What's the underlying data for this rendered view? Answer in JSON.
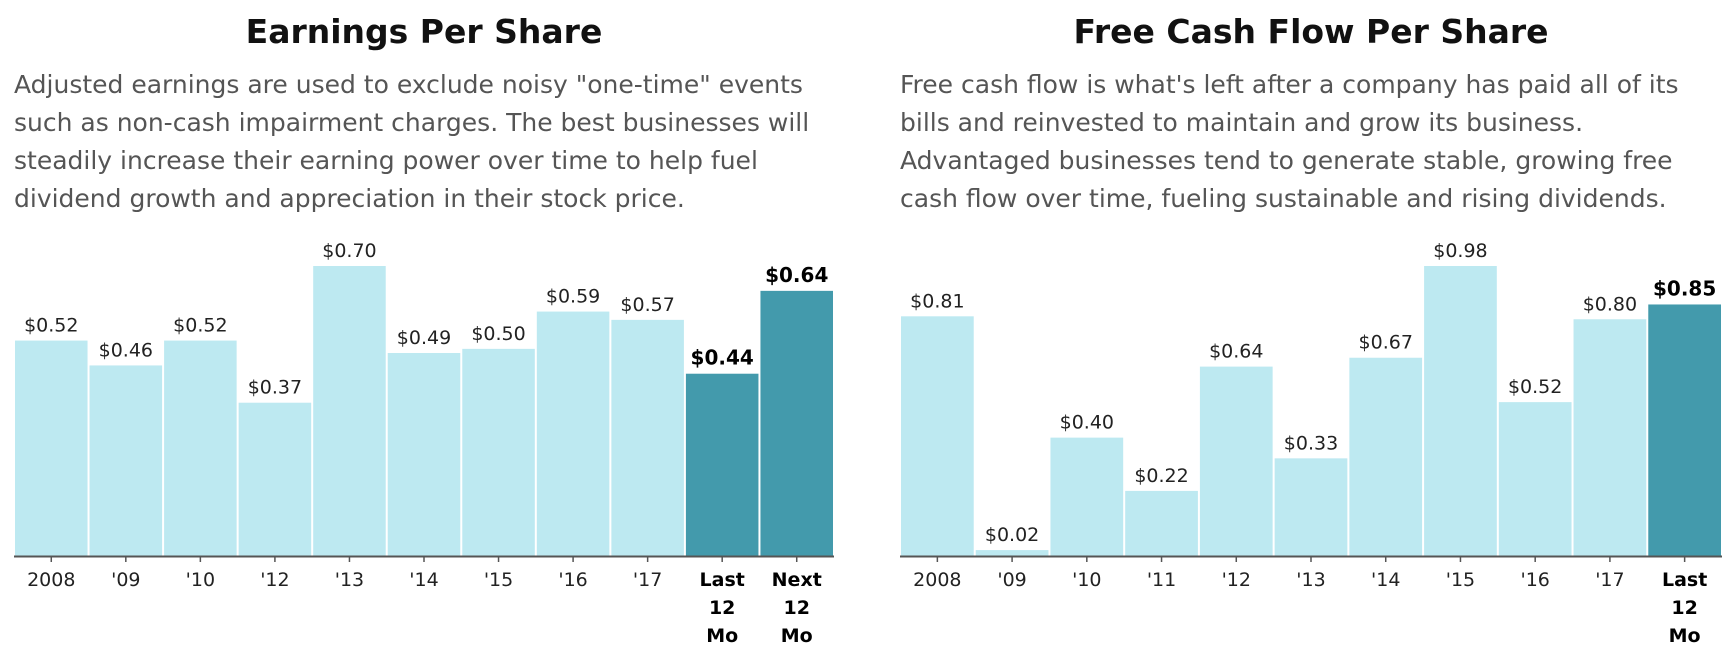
{
  "charts": [
    {
      "id": "eps",
      "title": "Earnings Per Share",
      "description": "Adjusted earnings are used to exclude noisy \"one-time\" events such as non-cash impairment charges. The best businesses will steadily increase their earning power over time to help fuel dividend growth and appreciation in their stock price."
    },
    {
      "id": "fcf",
      "title": "Free Cash Flow Per Share",
      "description": "Free cash flow is what's left after a company has paid all of its bills and reinvested to maintain and grow its business. Advantaged businesses tend to generate stable, growing free cash flow over time, fueling sustainable and rising dividends."
    }
  ],
  "colors": {
    "bar": "#bde9f1",
    "highlight": "#439aac",
    "axis": "#555555"
  },
  "chart_data": [
    {
      "type": "bar",
      "title": "Earnings Per Share",
      "categories": [
        "2008",
        "'09",
        "'10",
        "'12",
        "'13",
        "'14",
        "'15",
        "'16",
        "'17",
        "Last 12 Mo",
        "Next 12 Mo"
      ],
      "values": [
        0.52,
        0.46,
        0.52,
        0.37,
        0.7,
        0.49,
        0.5,
        0.59,
        0.57,
        0.44,
        0.64
      ],
      "labels": [
        "$0.52",
        "$0.46",
        "$0.52",
        "$0.37",
        "$0.70",
        "$0.49",
        "$0.50",
        "$0.59",
        "$0.57",
        "$0.44",
        "$0.64"
      ],
      "highlighted": [
        false,
        false,
        false,
        false,
        false,
        false,
        false,
        false,
        false,
        true,
        true
      ],
      "ylim": [
        0,
        0.7
      ],
      "xlabel": "",
      "ylabel": "",
      "grid": false
    },
    {
      "type": "bar",
      "title": "Free Cash Flow Per Share",
      "categories": [
        "2008",
        "'09",
        "'10",
        "'11",
        "'12",
        "'13",
        "'14",
        "'15",
        "'16",
        "'17",
        "Last 12 Mo"
      ],
      "values": [
        0.81,
        0.02,
        0.4,
        0.22,
        0.64,
        0.33,
        0.67,
        0.98,
        0.52,
        0.8,
        0.85
      ],
      "labels": [
        "$0.81",
        "$0.02",
        "$0.40",
        "$0.22",
        "$0.64",
        "$0.33",
        "$0.67",
        "$0.98",
        "$0.52",
        "$0.80",
        "$0.85"
      ],
      "highlighted": [
        false,
        false,
        false,
        false,
        false,
        false,
        false,
        false,
        false,
        false,
        true
      ],
      "ylim": [
        0,
        0.98
      ],
      "xlabel": "",
      "ylabel": "",
      "grid": false
    }
  ]
}
